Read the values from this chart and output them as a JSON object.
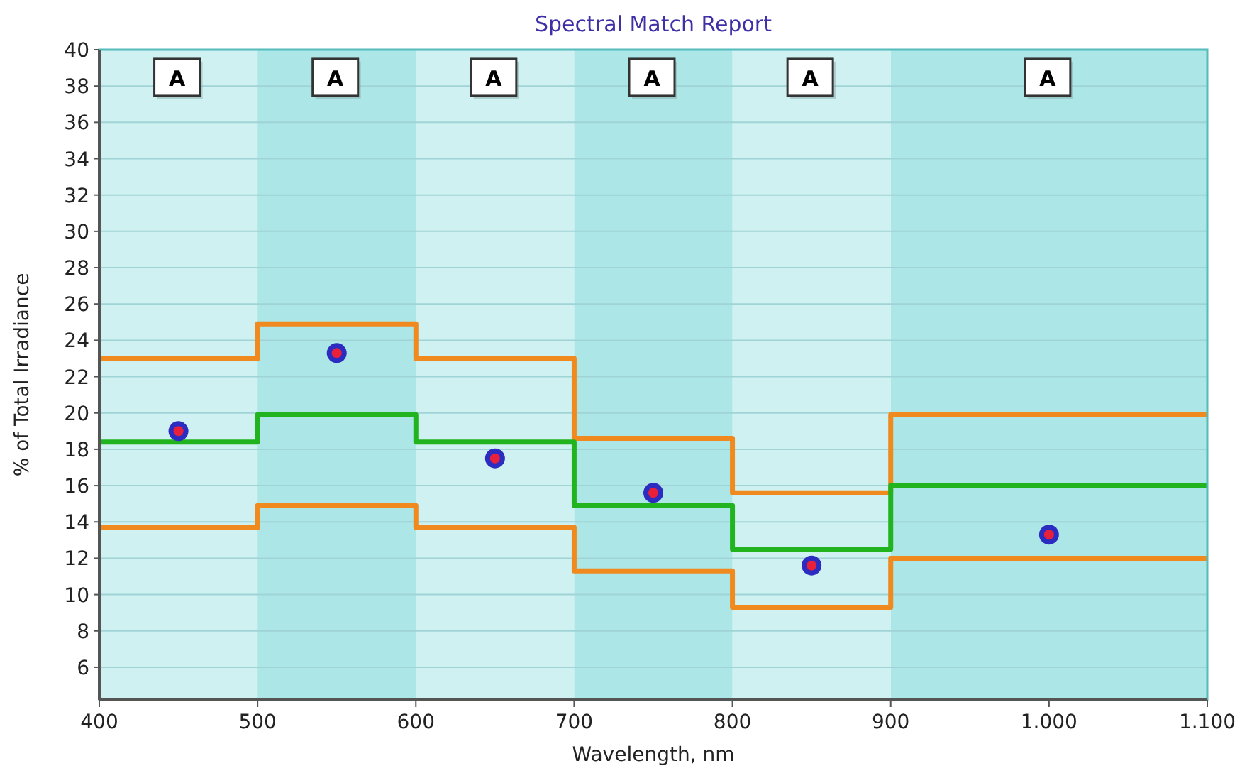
{
  "chart_data": {
    "type": "step",
    "title": "Spectral Match Report",
    "xlabel": "Wavelength, nm",
    "ylabel": "% of Total Irradiance",
    "xlim": [
      400,
      1100
    ],
    "xticks": [
      400,
      500,
      600,
      700,
      800,
      900,
      {
        "value": 1000,
        "label": "1.000"
      },
      {
        "value": 1100,
        "label": "1.100"
      }
    ],
    "ylim": [
      4.2,
      40
    ],
    "yticks": [
      6,
      8,
      10,
      12,
      14,
      16,
      18,
      20,
      22,
      24,
      26,
      28,
      30,
      32,
      34,
      36,
      38,
      40
    ],
    "grid": "y",
    "series": [
      {
        "color": "#f08a1e",
        "x": [
          400,
          500,
          600,
          700,
          800,
          900,
          1100
        ],
        "values": [
          23,
          24.9,
          23,
          18.6,
          15.6,
          19.9,
          19.9
        ]
      },
      {
        "color": "#22b41e",
        "x": [
          400,
          500,
          600,
          700,
          800,
          900,
          1100
        ],
        "values": [
          18.4,
          19.9,
          18.4,
          14.9,
          12.5,
          16.0,
          16.0
        ]
      },
      {
        "color": "#f08a1e",
        "x": [
          400,
          500,
          600,
          700,
          800,
          900,
          1100
        ],
        "values": [
          13.7,
          14.9,
          13.7,
          11.3,
          9.3,
          12.0,
          12.0
        ]
      },
      {
        "type": "scatter",
        "color": "#2c2cc0",
        "marker": "circle",
        "x": [
          450,
          550,
          650,
          750,
          850,
          1000
        ],
        "values": [
          19.0,
          23.3,
          17.5,
          15.6,
          11.6,
          13.3
        ]
      }
    ],
    "bands": [
      {
        "axis": "x",
        "from": 400,
        "to": 500,
        "color": "#cff1f1"
      },
      {
        "axis": "x",
        "from": 600,
        "to": 700,
        "color": "#cff1f1"
      },
      {
        "axis": "x",
        "from": 800,
        "to": 900,
        "color": "#cff1f1"
      },
      {
        "axis": "x",
        "from": 500,
        "to": 600,
        "color": "#ade6e6"
      },
      {
        "axis": "x",
        "from": 700,
        "to": 800,
        "color": "#ade6e6"
      },
      {
        "axis": "x",
        "from": 900,
        "to": 1100,
        "color": "#ade6e6"
      }
    ],
    "annotations": [
      {
        "text": "A",
        "x": 450,
        "y": 38.4
      },
      {
        "text": "A",
        "x": 550,
        "y": 38.4
      },
      {
        "text": "A",
        "x": 650,
        "y": 38.4
      },
      {
        "text": "A",
        "x": 750,
        "y": 38.4
      },
      {
        "text": "A",
        "x": 850,
        "y": 38.4
      },
      {
        "text": "A",
        "x": 1000,
        "y": 38.4
      }
    ]
  }
}
